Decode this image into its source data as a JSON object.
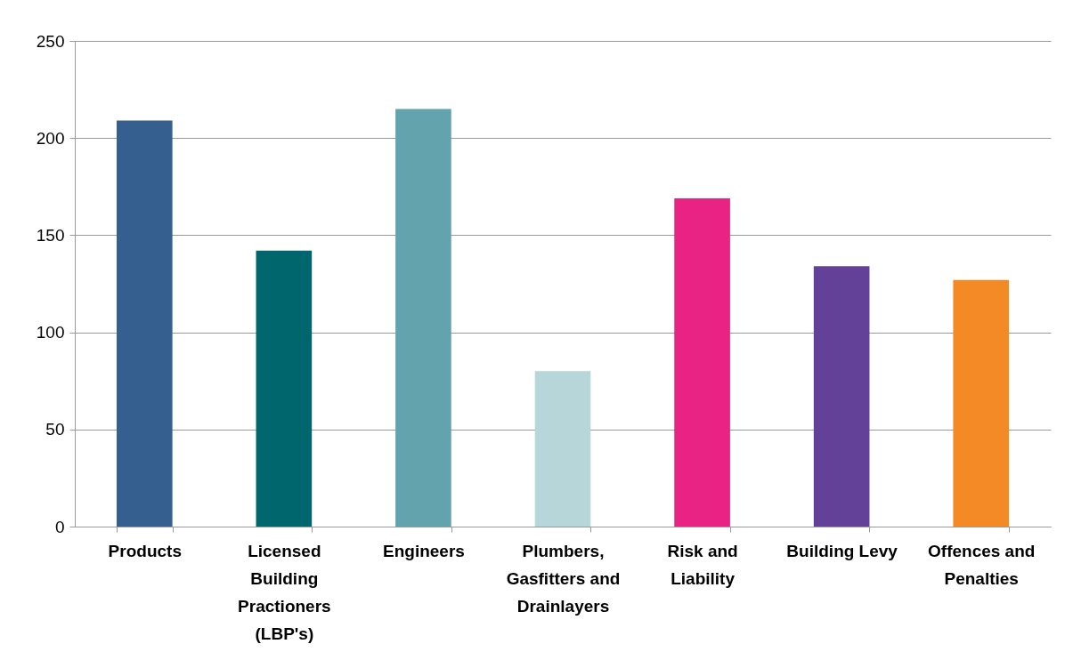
{
  "chart_data": {
    "type": "bar",
    "categories": [
      "Products",
      "Licensed Building Practioners (LBP's)",
      "Engineers",
      "Plumbers, Gasfitters and Drainlayers",
      "Risk and Liability",
      "Building Levy",
      "Offences and Penalties"
    ],
    "values": [
      209,
      142,
      215,
      80,
      169,
      134,
      127
    ],
    "colors": [
      "#355f8f",
      "#00666e",
      "#62a3ad",
      "#b6d6d9",
      "#e82384",
      "#634198",
      "#f48a25"
    ],
    "ylim": [
      0,
      250
    ],
    "yticks": [
      0,
      50,
      100,
      150,
      200,
      250
    ],
    "grid": "y"
  }
}
